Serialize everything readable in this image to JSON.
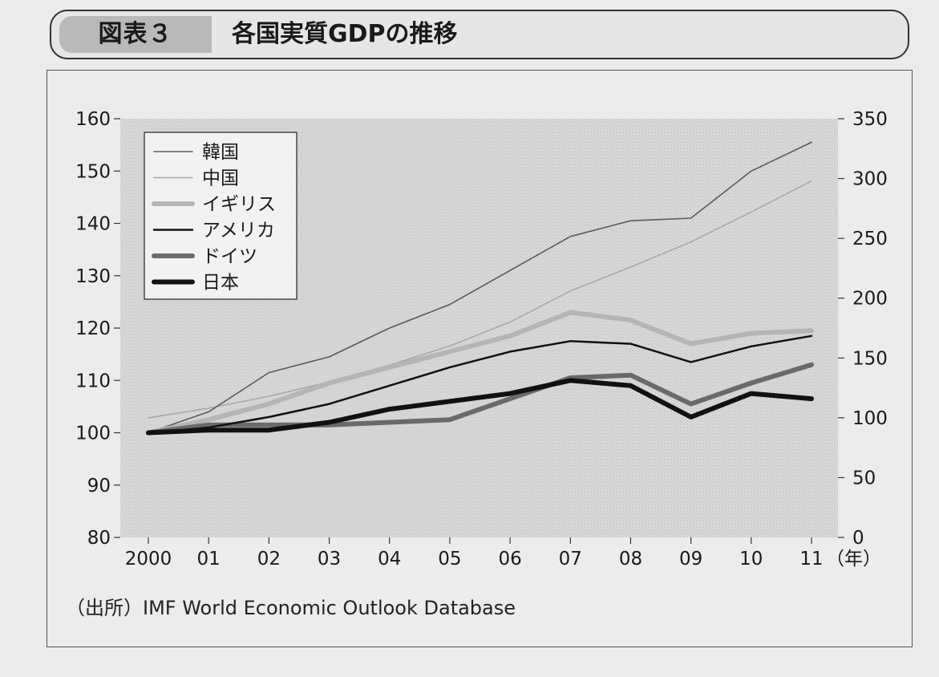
{
  "header": {
    "figure_number": "図表３",
    "title": "各国実質GDPの推移"
  },
  "source": "（出所）IMF World Economic Outlook Database",
  "chart_data": {
    "type": "line",
    "x": [
      "2000",
      "01",
      "02",
      "03",
      "04",
      "05",
      "06",
      "07",
      "08",
      "09",
      "10",
      "11"
    ],
    "x_unit": "（年）",
    "left_axis": {
      "ylim": [
        80,
        160
      ],
      "ticks": [
        "80",
        "90",
        "100",
        "110",
        "120",
        "130",
        "140",
        "150",
        "160"
      ]
    },
    "right_axis": {
      "ylim": [
        0,
        350
      ],
      "ticks": [
        "0",
        "50",
        "100",
        "150",
        "200",
        "250",
        "300",
        "350"
      ]
    },
    "legend_position": "top-left",
    "series": [
      {
        "name": "韓国",
        "color": "#5a5a5a",
        "width": 1.6,
        "axis": "left",
        "values": [
          100,
          104,
          111.5,
          114.5,
          120,
          124.5,
          131,
          137.5,
          140.5,
          141,
          150,
          155.5
        ]
      },
      {
        "name": "中国",
        "color": "#a8a8a8",
        "width": 1.6,
        "axis": "right",
        "values": [
          100,
          108,
          118,
          130,
          144,
          160,
          180,
          206,
          226,
          247,
          272,
          298
        ]
      },
      {
        "name": "イギリス",
        "color": "#b5b5b5",
        "width": 6,
        "axis": "left",
        "values": [
          100,
          102.5,
          105.5,
          109.5,
          112.5,
          115.5,
          118.5,
          123,
          121.5,
          117,
          119,
          119.5
        ]
      },
      {
        "name": "アメリカ",
        "color": "#111111",
        "width": 2.5,
        "axis": "left",
        "values": [
          100,
          101,
          103,
          105.5,
          109,
          112.5,
          115.5,
          117.5,
          117,
          113.5,
          116.5,
          118.5
        ]
      },
      {
        "name": "ドイツ",
        "color": "#6a6a6a",
        "width": 6,
        "axis": "left",
        "values": [
          100,
          101.5,
          101.5,
          101.5,
          102,
          102.5,
          106.5,
          110.5,
          111,
          105.5,
          109.5,
          113
        ]
      },
      {
        "name": "日本",
        "color": "#111111",
        "width": 6,
        "axis": "left",
        "values": [
          100,
          100.5,
          100.5,
          102,
          104.5,
          106,
          107.5,
          110,
          109,
          103,
          107.5,
          106.5
        ]
      }
    ]
  }
}
